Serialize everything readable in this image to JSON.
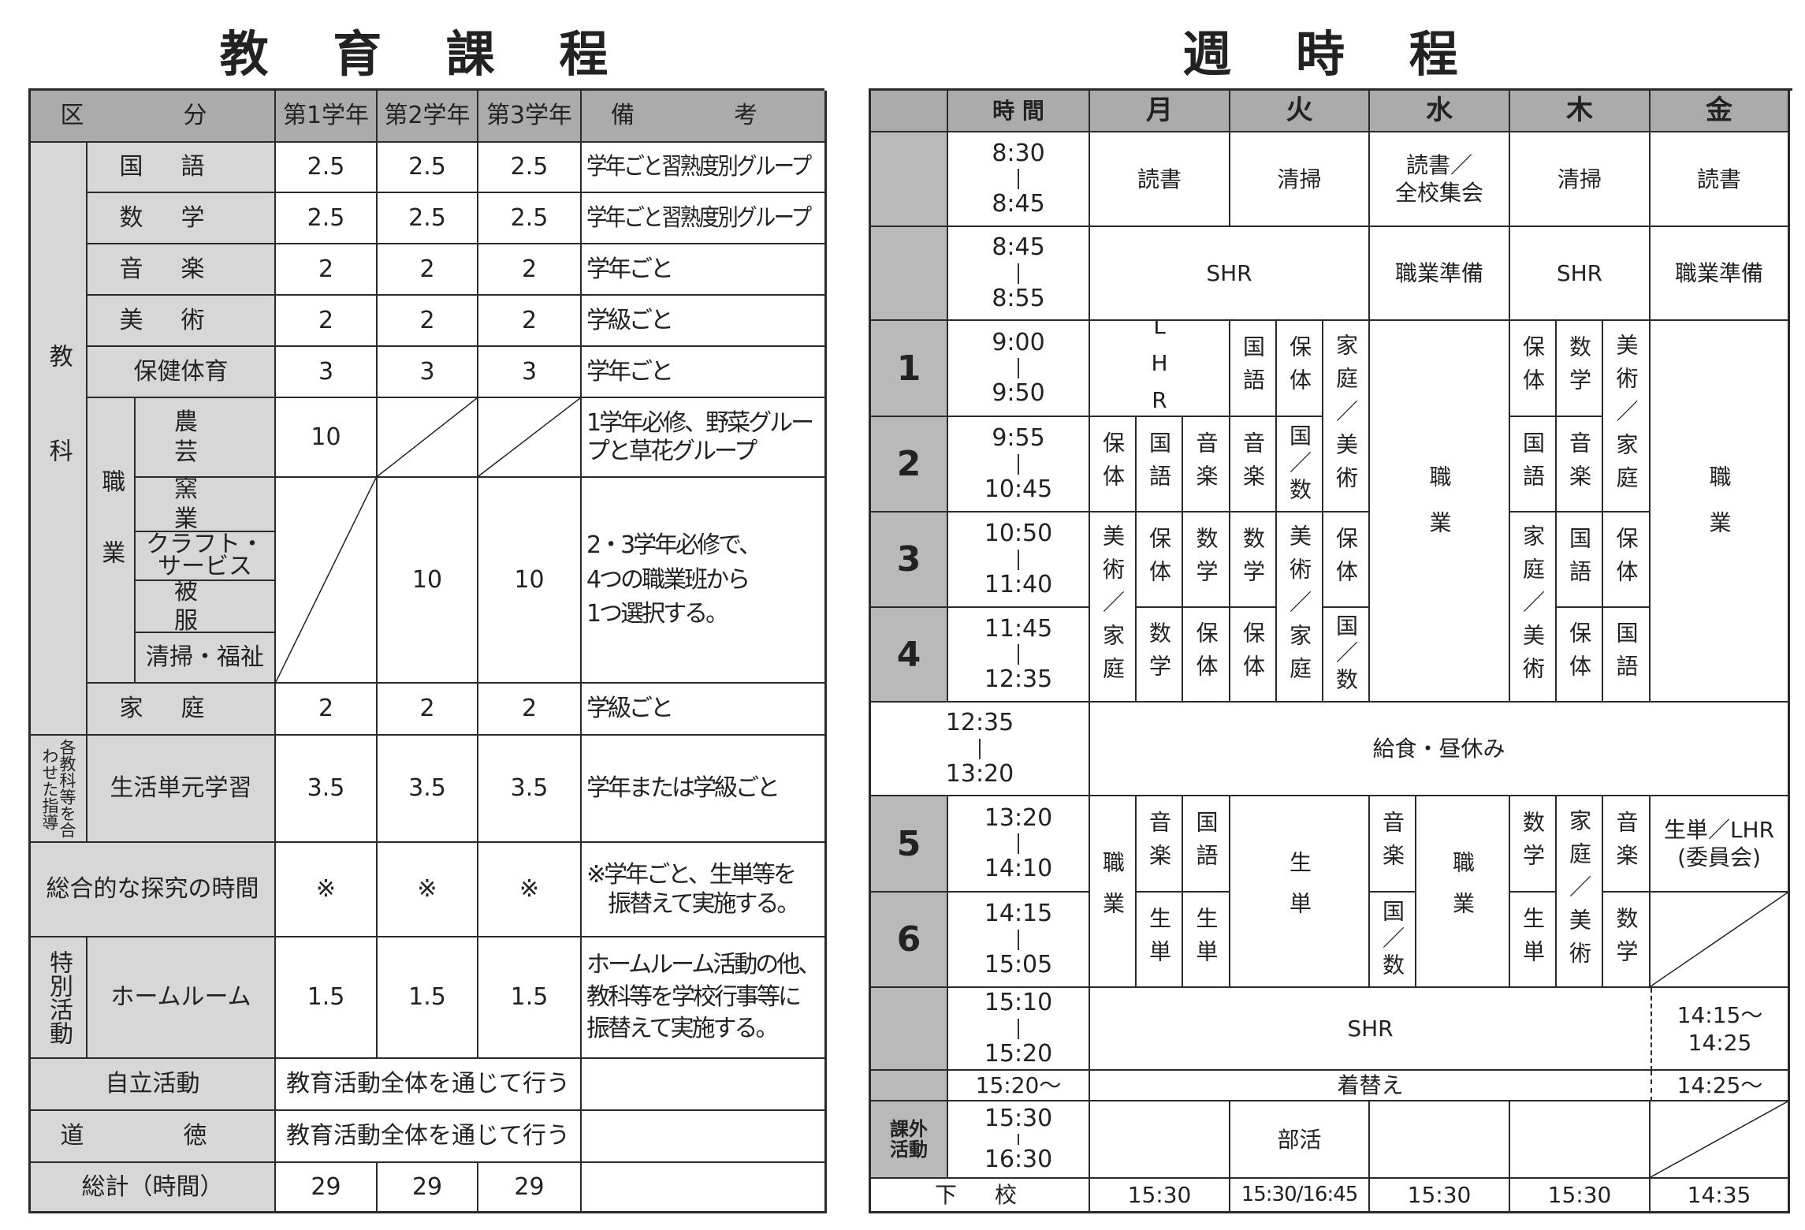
{
  "curriculum": {
    "title": "教 育 課 程",
    "header": {
      "category": "区　分",
      "years": [
        "第1学年",
        "第2学年",
        "第3学年"
      ],
      "notes": "備　考"
    },
    "subjects_group": "教科",
    "rows": [
      {
        "name": "国語",
        "values": [
          "2.5",
          "2.5",
          "2.5"
        ],
        "note": "学年ごと習熟度別グループ"
      },
      {
        "name": "数学",
        "values": [
          "2.5",
          "2.5",
          "2.5"
        ],
        "note": "学年ごと習熟度別グループ"
      },
      {
        "name": "音楽",
        "values": [
          "2",
          "2",
          "2"
        ],
        "note": "学年ごと"
      },
      {
        "name": "美術",
        "values": [
          "2",
          "2",
          "2"
        ],
        "note": "学級ごと"
      },
      {
        "name": "保健体育",
        "values": [
          "3",
          "3",
          "3"
        ],
        "note": "学年ごと"
      }
    ],
    "vocational": {
      "label": "職業",
      "agri": {
        "name": "農　芸",
        "value": "10",
        "note": "1学年必修、野菜グループと草花グループ"
      },
      "others": [
        "窯　業",
        "クラフト・\nサービス",
        "被　服",
        "清掃・福祉"
      ],
      "values_y2_y3": [
        "10",
        "10"
      ],
      "note": "2・3学年必修で、\n4つの職業班から\n1つ選択する。"
    },
    "home": {
      "name": "家庭",
      "values": [
        "2",
        "2",
        "2"
      ],
      "note": "学級ごと"
    },
    "combined": {
      "group": "各教科等を合わせた指導",
      "name": "生活単元学習",
      "values": [
        "3.5",
        "3.5",
        "3.5"
      ],
      "note": "学年または学級ごと"
    },
    "inquiry": {
      "name": "総合的な探究の時間",
      "values": [
        "※",
        "※",
        "※"
      ],
      "note": "※学年ごと、生単等を\n　振替えて実施する。"
    },
    "special": {
      "group": "特別活動",
      "name": "ホームルーム",
      "values": [
        "1.5",
        "1.5",
        "1.5"
      ],
      "note": "ホームルーム活動の他、\n教科等を学校行事等に\n振替えて実施する。"
    },
    "independence": {
      "name": "自立活動",
      "value": "教育活動全体を通じて行う"
    },
    "moral": {
      "name": "道　徳",
      "value": "教育活動全体を通じて行う"
    },
    "total": {
      "name": "総計（時間）",
      "values": [
        "29",
        "29",
        "29"
      ]
    }
  },
  "timetable": {
    "title": "週 時 程",
    "header": {
      "time": "時 間",
      "days": [
        "月",
        "火",
        "水",
        "木",
        "金"
      ]
    },
    "morning1": {
      "start": "8:30",
      "end": "8:45",
      "mon": "読書",
      "tue": "清掃",
      "wed": "読書／\n全校集会",
      "thu": "清掃",
      "fri": "読書"
    },
    "morning2": {
      "start": "8:45",
      "end": "8:55",
      "montue": "SHR",
      "wed": "職業準備",
      "thu": "SHR",
      "fri": "職業準備"
    },
    "periods": [
      {
        "label": "1",
        "start": "9:00",
        "end": "9:50"
      },
      {
        "label": "2",
        "start": "9:55",
        "end": "10:45"
      },
      {
        "label": "3",
        "start": "10:50",
        "end": "11:40"
      },
      {
        "label": "4",
        "start": "11:45",
        "end": "12:35"
      },
      {
        "label": "5",
        "start": "13:20",
        "end": "14:10"
      },
      {
        "label": "6",
        "start": "14:15",
        "end": "15:05"
      }
    ],
    "mon": {
      "p1": "LHR",
      "p2": [
        "保体",
        "国語",
        "音楽"
      ],
      "p34_1": "美術／家庭",
      "p3": [
        "保体",
        "数学"
      ],
      "p4": [
        "数学",
        "保体"
      ],
      "p56_1": "職業",
      "p5": [
        "音楽",
        "国語"
      ],
      "p6": [
        "生単",
        "生単"
      ]
    },
    "tue": {
      "p1": [
        "国語",
        "保体"
      ],
      "p12_3": "家庭／美術",
      "p2": [
        "音楽",
        "国／数"
      ],
      "p3_1": "数学",
      "p34_2": "美術／家庭",
      "p3_3": "保体",
      "p4_1": "保体",
      "p4_3": "国／数",
      "p56": "生単",
      "club": "部活"
    },
    "wed": {
      "p14": "職業",
      "p5_1": "音楽",
      "p6_1": "国／数",
      "p56_2": "職業"
    },
    "thu": {
      "p1": [
        "保体",
        "数学"
      ],
      "p12_3": "美術／家庭",
      "p2": [
        "国語",
        "音楽"
      ],
      "p34_1": "家庭／美術",
      "p3": [
        "国語",
        "保体"
      ],
      "p4": [
        "保体",
        "国語"
      ],
      "p5_1": "数学",
      "p6_1": "生単",
      "p56_2": "家庭／美術",
      "p5_3": "音楽",
      "p6_3": "数学"
    },
    "fri": {
      "p14": "職業",
      "p5": "生単／LHR\n(委員会)",
      "shr": "14:15～\n14:25",
      "change": "14:25～"
    },
    "lunch": {
      "start": "12:35",
      "end": "13:20",
      "text": "給食・昼休み"
    },
    "shr": {
      "start": "15:10",
      "end": "15:20",
      "text": "SHR"
    },
    "change": {
      "time": "15:20～",
      "text": "着替え"
    },
    "club": {
      "label": "課外\n活動",
      "start": "15:30",
      "end": "16:30"
    },
    "dismissal": {
      "label": "下　校",
      "times": [
        "15:30",
        "15:30/16:45",
        "15:30",
        "15:30",
        "14:35"
      ]
    }
  }
}
